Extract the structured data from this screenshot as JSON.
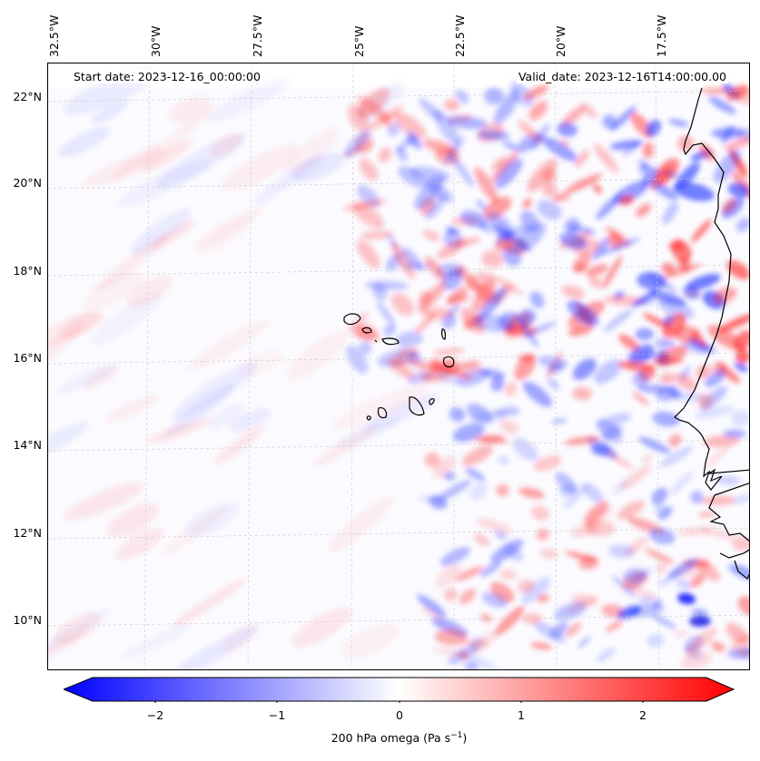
{
  "header": {
    "start_date": "Start date: 2023-12-16_00:00:00",
    "valid_date": "Valid_date: 2023-12-16T14:00:00.00"
  },
  "axes": {
    "longitude_labels": [
      "32.5°W",
      "30°W",
      "27.5°W",
      "25°W",
      "22.5°W",
      "20°W",
      "17.5°W"
    ],
    "latitude_labels": [
      "22°N",
      "20°N",
      "18°N",
      "16°N",
      "14°N",
      "12°N",
      "10°N"
    ]
  },
  "colorbar": {
    "ticks": [
      "−2",
      "−1",
      "0",
      "1",
      "2"
    ],
    "label": "200 hPa omega (Pa s",
    "label_sup": "−1",
    "label_end": ")",
    "min_color": "#0000ff",
    "mid_color": "#ffffff",
    "max_color": "#ff0000"
  },
  "field": {
    "variable": "200 hPa omega",
    "range": [
      -2.5,
      2.5
    ]
  },
  "colors": {
    "coastline": "#000000",
    "gridline": "#c8c8c8"
  }
}
